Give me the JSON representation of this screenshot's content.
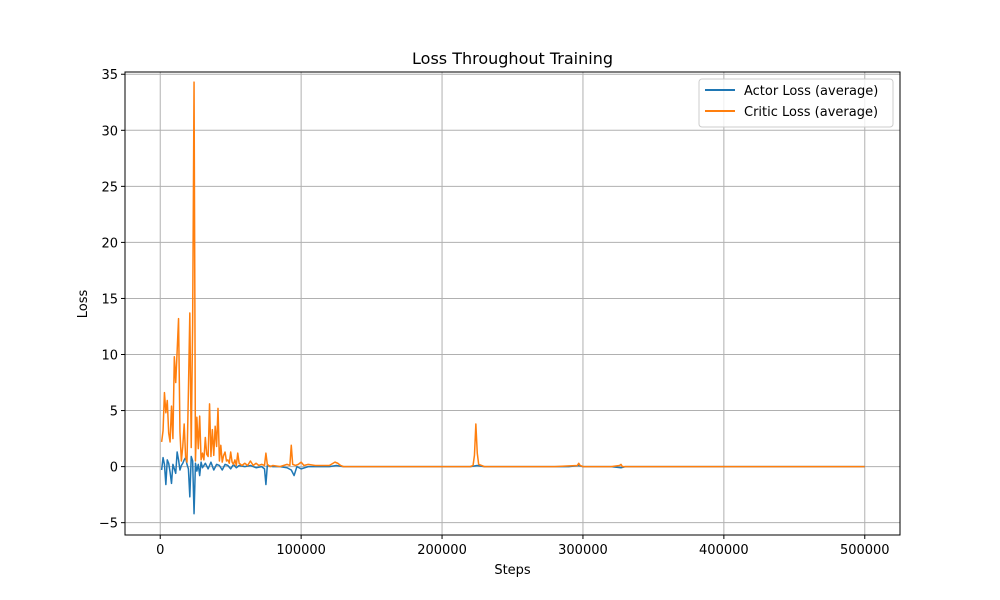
{
  "chart_data": {
    "type": "line",
    "title": "Loss Throughout Training",
    "xlabel": "Steps",
    "ylabel": "Loss",
    "xlim": [
      -25000,
      525000
    ],
    "ylim": [
      -6.1,
      35.2
    ],
    "x_ticks": [
      0,
      100000,
      200000,
      300000,
      400000,
      500000
    ],
    "x_tick_labels": [
      "0",
      "100000",
      "200000",
      "300000",
      "400000",
      "500000"
    ],
    "y_ticks": [
      -5,
      0,
      5,
      10,
      15,
      20,
      25,
      30,
      35
    ],
    "y_tick_labels": [
      "−5",
      "0",
      "5",
      "10",
      "15",
      "20",
      "25",
      "30",
      "35"
    ],
    "grid": true,
    "legend_position": "top-right",
    "series": [
      {
        "name": "Actor Loss (average)",
        "color": "#1f77b4",
        "points": [
          [
            1000,
            -0.3
          ],
          [
            2000,
            0.8
          ],
          [
            3000,
            0.2
          ],
          [
            4000,
            -1.6
          ],
          [
            5000,
            0.6
          ],
          [
            6000,
            0.3
          ],
          [
            7000,
            -0.5
          ],
          [
            8000,
            -1.5
          ],
          [
            9000,
            0.2
          ],
          [
            10000,
            -0.2
          ],
          [
            11000,
            -0.6
          ],
          [
            12000,
            1.3
          ],
          [
            13000,
            0.6
          ],
          [
            14000,
            -0.3
          ],
          [
            15000,
            0.1
          ],
          [
            16000,
            0.3
          ],
          [
            17000,
            0.6
          ],
          [
            18000,
            0.8
          ],
          [
            19000,
            0.2
          ],
          [
            20000,
            -0.2
          ],
          [
            21000,
            -2.7
          ],
          [
            22000,
            0.9
          ],
          [
            23000,
            0.5
          ],
          [
            24000,
            -4.2
          ],
          [
            25000,
            0.3
          ],
          [
            26000,
            -0.4
          ],
          [
            27000,
            0.2
          ],
          [
            28000,
            -0.8
          ],
          [
            29000,
            0.4
          ],
          [
            30000,
            -0.1
          ],
          [
            32000,
            0.3
          ],
          [
            34000,
            -0.2
          ],
          [
            36000,
            0.4
          ],
          [
            38000,
            -0.3
          ],
          [
            40000,
            0.2
          ],
          [
            42000,
            0.1
          ],
          [
            44000,
            -0.3
          ],
          [
            46000,
            0.2
          ],
          [
            48000,
            0.1
          ],
          [
            50000,
            -0.2
          ],
          [
            52000,
            0.2
          ],
          [
            54000,
            -0.1
          ],
          [
            56000,
            0.1
          ],
          [
            60000,
            0.0
          ],
          [
            64000,
            0.1
          ],
          [
            68000,
            -0.1
          ],
          [
            72000,
            0.0
          ],
          [
            74000,
            -0.2
          ],
          [
            75000,
            -1.6
          ],
          [
            76000,
            0.1
          ],
          [
            80000,
            0.0
          ],
          [
            85000,
            0.0
          ],
          [
            90000,
            -0.1
          ],
          [
            93000,
            -0.3
          ],
          [
            95000,
            -0.8
          ],
          [
            97000,
            0.0
          ],
          [
            100000,
            -0.2
          ],
          [
            105000,
            0.0
          ],
          [
            110000,
            0.0
          ],
          [
            115000,
            0.0
          ],
          [
            120000,
            0.0
          ],
          [
            125000,
            0.1
          ],
          [
            130000,
            0.0
          ],
          [
            140000,
            0.0
          ],
          [
            160000,
            0.0
          ],
          [
            180000,
            0.0
          ],
          [
            200000,
            0.0
          ],
          [
            220000,
            0.0
          ],
          [
            225000,
            0.1
          ],
          [
            230000,
            0.0
          ],
          [
            250000,
            0.0
          ],
          [
            270000,
            0.0
          ],
          [
            290000,
            0.0
          ],
          [
            297000,
            0.1
          ],
          [
            300000,
            0.0
          ],
          [
            320000,
            0.0
          ],
          [
            327000,
            -0.1
          ],
          [
            330000,
            0.0
          ],
          [
            350000,
            0.0
          ],
          [
            400000,
            0.0
          ],
          [
            450000,
            0.0
          ],
          [
            500000,
            0.0
          ]
        ]
      },
      {
        "name": "Critic Loss (average)",
        "color": "#ff7f0e",
        "points": [
          [
            1000,
            2.2
          ],
          [
            2000,
            3.2
          ],
          [
            3000,
            6.6
          ],
          [
            4000,
            4.8
          ],
          [
            5000,
            5.9
          ],
          [
            6000,
            3.0
          ],
          [
            7000,
            2.2
          ],
          [
            8000,
            5.4
          ],
          [
            9000,
            2.5
          ],
          [
            10000,
            9.8
          ],
          [
            11000,
            7.5
          ],
          [
            12000,
            10.3
          ],
          [
            13000,
            13.2
          ],
          [
            14000,
            3.1
          ],
          [
            15000,
            0.5
          ],
          [
            16000,
            1.8
          ],
          [
            17000,
            3.8
          ],
          [
            18000,
            0.9
          ],
          [
            19000,
            0.4
          ],
          [
            20000,
            6.7
          ],
          [
            21000,
            13.7
          ],
          [
            22000,
            1.7
          ],
          [
            23000,
            12.7
          ],
          [
            24000,
            34.3
          ],
          [
            25000,
            0.5
          ],
          [
            26000,
            4.4
          ],
          [
            27000,
            1.6
          ],
          [
            28000,
            4.5
          ],
          [
            29000,
            0.6
          ],
          [
            30000,
            1.2
          ],
          [
            31000,
            0.6
          ],
          [
            32000,
            2.6
          ],
          [
            33000,
            1.1
          ],
          [
            34000,
            0.9
          ],
          [
            35000,
            5.6
          ],
          [
            36000,
            0.9
          ],
          [
            37000,
            3.3
          ],
          [
            38000,
            1.0
          ],
          [
            39000,
            3.6
          ],
          [
            40000,
            1.8
          ],
          [
            41000,
            5.2
          ],
          [
            42000,
            0.5
          ],
          [
            43000,
            1.9
          ],
          [
            44000,
            0.4
          ],
          [
            45000,
            1.0
          ],
          [
            46000,
            1.3
          ],
          [
            47000,
            0.5
          ],
          [
            48000,
            0.6
          ],
          [
            49000,
            0.3
          ],
          [
            50000,
            1.3
          ],
          [
            51000,
            0.4
          ],
          [
            52000,
            0.2
          ],
          [
            53000,
            0.6
          ],
          [
            54000,
            0.1
          ],
          [
            55000,
            1.2
          ],
          [
            56000,
            0.3
          ],
          [
            58000,
            0.1
          ],
          [
            60000,
            0.3
          ],
          [
            62000,
            0.1
          ],
          [
            64000,
            0.5
          ],
          [
            66000,
            0.1
          ],
          [
            68000,
            0.3
          ],
          [
            70000,
            0.1
          ],
          [
            72000,
            0.2
          ],
          [
            74000,
            0.1
          ],
          [
            75000,
            1.2
          ],
          [
            76000,
            0.2
          ],
          [
            78000,
            0.0
          ],
          [
            80000,
            0.1
          ],
          [
            85000,
            0.0
          ],
          [
            90000,
            0.2
          ],
          [
            92000,
            0.1
          ],
          [
            93000,
            1.9
          ],
          [
            94000,
            0.2
          ],
          [
            96000,
            0.1
          ],
          [
            98000,
            0.2
          ],
          [
            100000,
            0.4
          ],
          [
            102000,
            0.1
          ],
          [
            105000,
            0.2
          ],
          [
            110000,
            0.1
          ],
          [
            115000,
            0.1
          ],
          [
            120000,
            0.1
          ],
          [
            124000,
            0.4
          ],
          [
            126000,
            0.3
          ],
          [
            128000,
            0.1
          ],
          [
            130000,
            0.0
          ],
          [
            140000,
            0.0
          ],
          [
            160000,
            0.0
          ],
          [
            180000,
            0.0
          ],
          [
            200000,
            0.0
          ],
          [
            215000,
            0.0
          ],
          [
            220000,
            0.0
          ],
          [
            222000,
            0.1
          ],
          [
            223000,
            1.0
          ],
          [
            224000,
            3.8
          ],
          [
            225000,
            1.2
          ],
          [
            226000,
            0.2
          ],
          [
            228000,
            0.1
          ],
          [
            230000,
            0.0
          ],
          [
            240000,
            0.0
          ],
          [
            260000,
            0.0
          ],
          [
            280000,
            0.0
          ],
          [
            296000,
            0.1
          ],
          [
            297000,
            0.3
          ],
          [
            298000,
            0.1
          ],
          [
            300000,
            0.0
          ],
          [
            320000,
            0.0
          ],
          [
            326000,
            0.1
          ],
          [
            327000,
            0.2
          ],
          [
            328000,
            0.0
          ],
          [
            350000,
            0.0
          ],
          [
            400000,
            0.0
          ],
          [
            450000,
            0.0
          ],
          [
            500000,
            0.0
          ]
        ]
      }
    ]
  }
}
